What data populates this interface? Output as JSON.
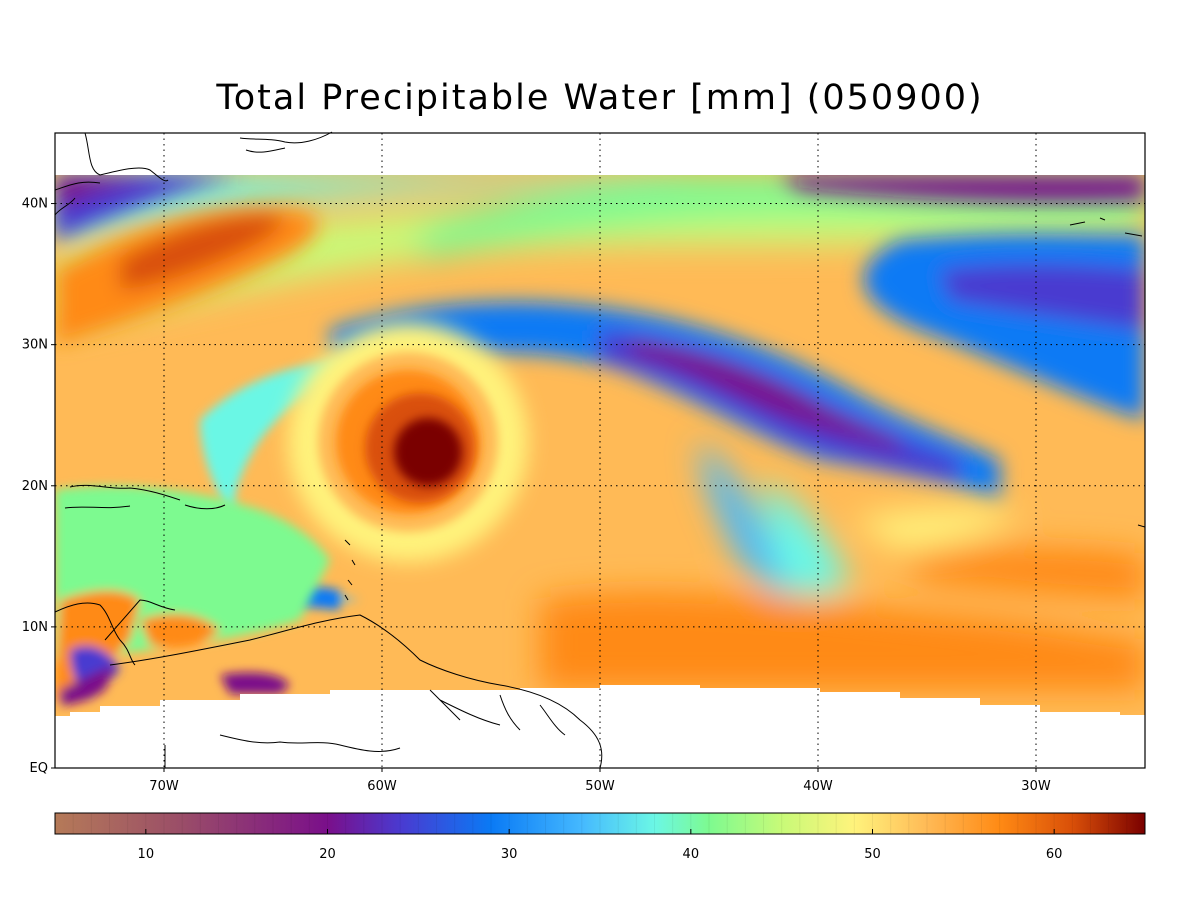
{
  "title": "Total Precipitable Water [mm]  (050900)",
  "map": {
    "lon_range": [
      -75,
      -25
    ],
    "lat_range": [
      0,
      45
    ],
    "data_lat_range": [
      4,
      42
    ],
    "lat_ticks": [
      {
        "value": 0,
        "label": "EQ"
      },
      {
        "value": 10,
        "label": "10N"
      },
      {
        "value": 20,
        "label": "20N"
      },
      {
        "value": 30,
        "label": "30N"
      },
      {
        "value": 40,
        "label": "40N"
      }
    ],
    "lon_ticks": [
      {
        "value": -70,
        "label": "70W"
      },
      {
        "value": -60,
        "label": "60W"
      },
      {
        "value": -50,
        "label": "50W"
      },
      {
        "value": -40,
        "label": "40W"
      },
      {
        "value": -30,
        "label": "30W"
      }
    ],
    "grid": "dotted"
  },
  "colorbar": {
    "range": [
      5,
      65
    ],
    "ticks": [
      {
        "value": 10,
        "label": "10"
      },
      {
        "value": 20,
        "label": "20"
      },
      {
        "value": 30,
        "label": "30"
      },
      {
        "value": 40,
        "label": "40"
      },
      {
        "value": 50,
        "label": "50"
      },
      {
        "value": 60,
        "label": "60"
      }
    ],
    "stops": [
      {
        "value": 5,
        "color": "#b57a58"
      },
      {
        "value": 12,
        "color": "#9a4d68"
      },
      {
        "value": 20,
        "color": "#7a0f8a"
      },
      {
        "value": 24,
        "color": "#4a3ad0"
      },
      {
        "value": 29,
        "color": "#0a7af5"
      },
      {
        "value": 34,
        "color": "#45b9ff"
      },
      {
        "value": 38,
        "color": "#6bf7e5"
      },
      {
        "value": 41,
        "color": "#7dfa90"
      },
      {
        "value": 45,
        "color": "#c8fa78"
      },
      {
        "value": 49,
        "color": "#fff37c"
      },
      {
        "value": 53,
        "color": "#ffba56"
      },
      {
        "value": 57,
        "color": "#ff8a14"
      },
      {
        "value": 61,
        "color": "#d94f08"
      },
      {
        "value": 65,
        "color": "#7a0000"
      }
    ]
  },
  "features": [
    {
      "name": "hurricane-core",
      "lon": -59.5,
      "lat": 22.5,
      "value": 65
    },
    {
      "name": "hurricane-ring",
      "lon": -59.5,
      "lat": 22.5,
      "value": 56
    },
    {
      "name": "dry-band-north",
      "lon": -42,
      "lat": 28,
      "value": 23
    },
    {
      "name": "dry-patch-northeast",
      "lon": -33,
      "lat": 41,
      "value": 20
    },
    {
      "name": "dry-patch-northwest",
      "lon": -73,
      "lat": 40,
      "value": 20
    },
    {
      "name": "moist-tongue-northwest",
      "lon": -66,
      "lat": 37,
      "value": 57
    },
    {
      "name": "moist-region-southeast",
      "lon": -45,
      "lat": 12,
      "value": 54
    },
    {
      "name": "moist-band-east",
      "lon": -30,
      "lat": 13,
      "value": 56
    }
  ]
}
